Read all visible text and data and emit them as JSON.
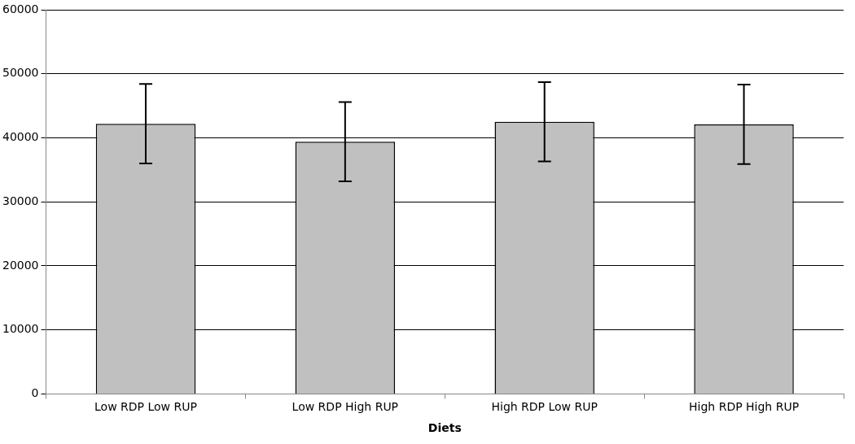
{
  "chart_data": {
    "type": "bar",
    "xlabel": "Diets",
    "categories": [
      "Low RDP Low RUP",
      "Low RDP High RUP",
      "High RDP Low RUP",
      "High RDP High RUP"
    ],
    "values": [
      42200,
      39400,
      42500,
      42100
    ],
    "errors": [
      6200,
      6200,
      6200,
      6200
    ],
    "color": "#c0c0c0",
    "ylim": [
      0,
      60000
    ],
    "yticks": [
      0,
      10000,
      20000,
      30000,
      40000,
      50000,
      60000
    ],
    "grid": "y"
  }
}
